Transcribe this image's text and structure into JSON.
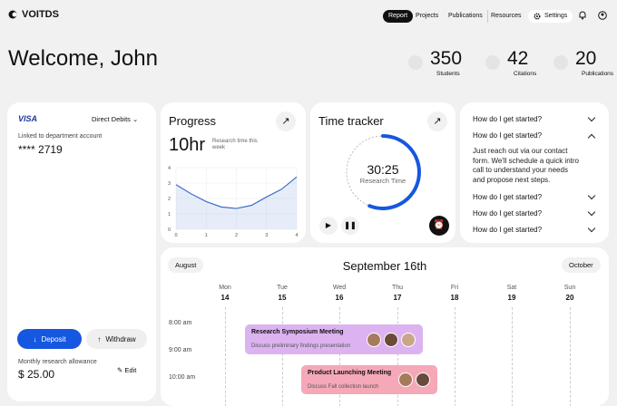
{
  "nav": {
    "logo": "VOITDS",
    "links": [
      "Report",
      "Projects",
      "Publications",
      "Resources"
    ],
    "settings": "Settings"
  },
  "header": {
    "title": "Welcome, John",
    "stats": [
      {
        "value": 350,
        "label": "Students"
      },
      {
        "value": 42,
        "label": "Citations"
      },
      {
        "value": 20,
        "label": "Publications"
      }
    ]
  },
  "payment": {
    "brand": "VISA",
    "method": "Direct Debits",
    "linked_label": "Linked to department account",
    "account": "**** 2719",
    "deposit": "Deposit",
    "withdraw": "Withdraw",
    "allowance_label": "Monthly research allowance",
    "allowance": "$ 25.00",
    "edit": "Edit"
  },
  "progress": {
    "title": "Progress",
    "value": "10hr",
    "caption": "Research time this week",
    "chart": {
      "type": "line",
      "x": [
        0,
        0.5,
        1,
        1.5,
        2,
        2.5,
        3,
        3.5,
        4
      ],
      "values": [
        2.9,
        2.3,
        1.8,
        1.45,
        1.35,
        1.55,
        2.1,
        2.6,
        3.4
      ],
      "xlim": [
        0,
        4
      ],
      "ylim": [
        0,
        4
      ],
      "xticks": [
        0,
        1,
        2,
        3,
        4
      ],
      "yticks": [
        0,
        1,
        2,
        3,
        4
      ],
      "color": "#3d6fc9",
      "grid": true
    }
  },
  "tracker": {
    "title": "Time tracker",
    "time": "30:25",
    "caption": "Research Time",
    "progress": 0.56
  },
  "faq": {
    "items": [
      {
        "question": "How do I get started?"
      },
      {
        "question": "How do I get started?",
        "answer": "Just reach out via our contact form. We'll schedule a quick intro call to understand your needs and propose next steps."
      },
      {
        "question": "How do I get started?"
      },
      {
        "question": "How do I get started?"
      },
      {
        "question": "How do I get started?"
      }
    ]
  },
  "calendar": {
    "prev": "August",
    "title": "September 16th",
    "next": "October",
    "days": [
      {
        "name": "Mon",
        "date": 14
      },
      {
        "name": "Tue",
        "date": 15
      },
      {
        "name": "Wed",
        "date": 16
      },
      {
        "name": "Thu",
        "date": 17
      },
      {
        "name": "Fri",
        "date": 18
      },
      {
        "name": "Sat",
        "date": 19
      },
      {
        "name": "Sun",
        "date": 20
      }
    ],
    "times": [
      "8:00 am",
      "9:00 am",
      "10:00 am"
    ],
    "events": [
      {
        "title": "Research Symposium Meeting",
        "description": "Discuss preliminary findings presentation",
        "color": "#dcb3f0"
      },
      {
        "title": "Product Launching Meeting",
        "description": "Discuss Fall collection launch",
        "color": "#f5a8b8"
      }
    ]
  }
}
